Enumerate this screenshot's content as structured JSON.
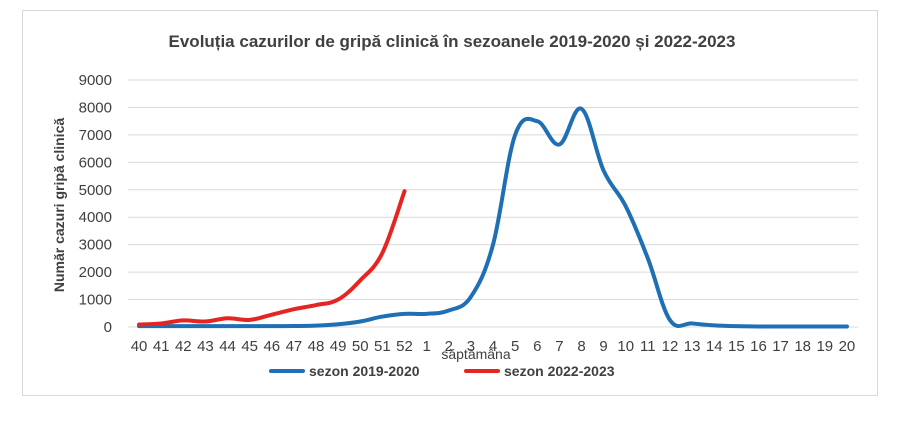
{
  "chart_data": {
    "type": "line",
    "title": "Evoluția cazurilor de gripă clinică în sezoanele 2019-2020 și 2022-2023",
    "xlabel": "săptămâna",
    "ylabel": "Număr cazuri gripă clinică",
    "ylim": [
      0,
      9000
    ],
    "yticks": [
      "0",
      "1000",
      "2000",
      "3000",
      "4000",
      "5000",
      "6000",
      "7000",
      "8000",
      "9000"
    ],
    "categories": [
      "40",
      "41",
      "42",
      "43",
      "44",
      "45",
      "46",
      "47",
      "48",
      "49",
      "50",
      "51",
      "52",
      "1",
      "2",
      "3",
      "4",
      "5",
      "6",
      "7",
      "8",
      "9",
      "10",
      "11",
      "12",
      "13",
      "14",
      "15",
      "16",
      "17",
      "18",
      "19",
      "20"
    ],
    "grid": true,
    "legend_position": "bottom",
    "series": [
      {
        "name": "sezon 2019-2020",
        "color": "#1f6fb5",
        "values": [
          30,
          30,
          30,
          30,
          30,
          30,
          30,
          35,
          50,
          100,
          200,
          380,
          480,
          480,
          600,
          1100,
          3000,
          7000,
          7500,
          6650,
          7950,
          5700,
          4400,
          2500,
          250,
          130,
          60,
          30,
          20,
          20,
          20,
          20,
          20
        ]
      },
      {
        "name": "sezon 2022-2023",
        "color": "#e52520",
        "values": [
          90,
          130,
          240,
          200,
          320,
          260,
          450,
          650,
          800,
          1000,
          1700,
          2700,
          4950,
          null,
          null,
          null,
          null,
          null,
          null,
          null,
          null,
          null,
          null,
          null,
          null,
          null,
          null,
          null,
          null,
          null,
          null,
          null,
          null
        ]
      }
    ]
  }
}
